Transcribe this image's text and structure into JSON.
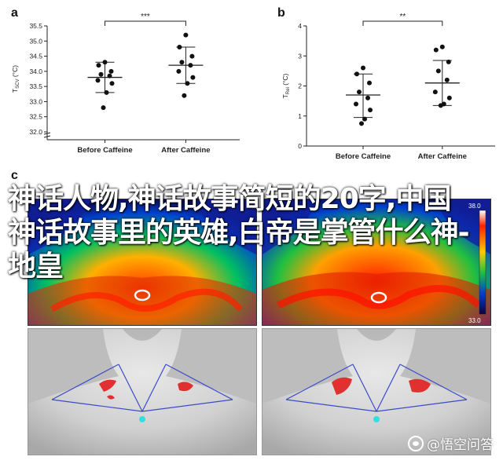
{
  "panels": {
    "a": "a",
    "b": "b",
    "c": "c"
  },
  "overlay": {
    "title": "神话人物,神话故事简短的20字,中国神话故事里的英雄,白帝是掌管什么神-地皇",
    "watermark": "@悟空问答"
  },
  "thermal_scale": {
    "max": "38.0",
    "min": "33.0"
  },
  "chart_data": [
    {
      "type": "scatter",
      "panel": "a",
      "ylabel_main": "T",
      "ylabel_sub": "SCV",
      "ylabel_unit": "(°C)",
      "ylim": [
        32.0,
        35.5
      ],
      "yticks": [
        "32.0",
        "32.5",
        "33.0",
        "33.5",
        "34.0",
        "34.5",
        "35.0",
        "35.5"
      ],
      "categories": [
        "Before Caffeine",
        "After Caffeine"
      ],
      "significance": "***",
      "series": [
        {
          "category": "Before Caffeine",
          "mean": 33.8,
          "err_low": 33.3,
          "err_high": 34.3,
          "points": [
            34.3,
            34.2,
            34.0,
            33.9,
            33.85,
            33.7,
            33.6,
            33.3,
            32.8
          ]
        },
        {
          "category": "After Caffeine",
          "mean": 34.2,
          "err_low": 33.6,
          "err_high": 34.8,
          "points": [
            35.2,
            34.8,
            34.5,
            34.3,
            34.2,
            34.0,
            33.8,
            33.6,
            33.2
          ]
        }
      ]
    },
    {
      "type": "scatter",
      "panel": "b",
      "ylabel_main": "T",
      "ylabel_sub": "Rel",
      "ylabel_unit": "(°C)",
      "ylim": [
        0,
        4
      ],
      "yticks": [
        "0",
        "1",
        "2",
        "3",
        "4"
      ],
      "categories": [
        "Before Caffeine",
        "After Caffeine"
      ],
      "significance": "**",
      "series": [
        {
          "category": "Before Caffeine",
          "mean": 1.7,
          "err_low": 0.95,
          "err_high": 2.4,
          "points": [
            2.6,
            2.4,
            2.1,
            1.8,
            1.6,
            1.4,
            1.2,
            0.9,
            0.75
          ]
        },
        {
          "category": "After Caffeine",
          "mean": 2.1,
          "err_low": 1.35,
          "err_high": 2.85,
          "points": [
            3.3,
            3.2,
            2.8,
            2.5,
            2.2,
            1.8,
            1.6,
            1.4,
            1.35
          ]
        }
      ]
    }
  ]
}
